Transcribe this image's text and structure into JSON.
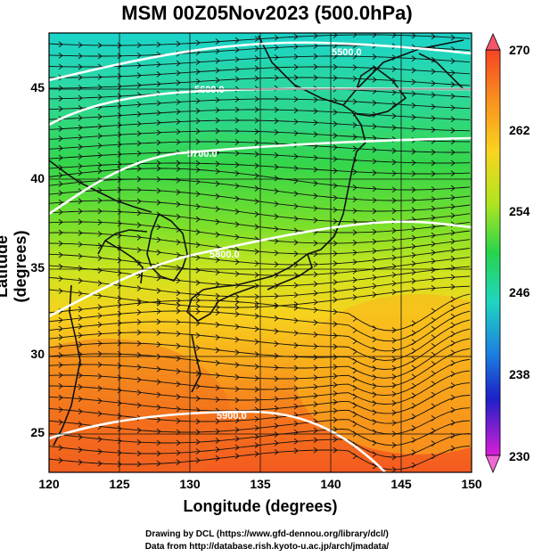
{
  "title": "MSM 00Z05Nov2023 (500.0hPa)",
  "xlabel": "Longitude (degrees)",
  "ylabel": "Latitude  (degrees)",
  "x_ticks": [
    "120",
    "125",
    "130",
    "135",
    "140",
    "145",
    "150"
  ],
  "y_ticks": [
    "45",
    "40",
    "35",
    "30",
    "25"
  ],
  "colorbar": {
    "ticks": [
      "270",
      "262",
      "254",
      "246",
      "238",
      "230"
    ],
    "min": 230,
    "max": 270
  },
  "contours": [
    {
      "label": "5500.0"
    },
    {
      "label": "5600.0"
    },
    {
      "label": "5700.0"
    },
    {
      "label": "5800.0"
    },
    {
      "label": "5900.0"
    }
  ],
  "credit_line1": "Drawing by DCL (https://www.gfd-dennou.org/library/dcl/)",
  "credit_line2": "Data from http://database.rish.kyoto-u.ac.jp/arch/jmadata/"
}
